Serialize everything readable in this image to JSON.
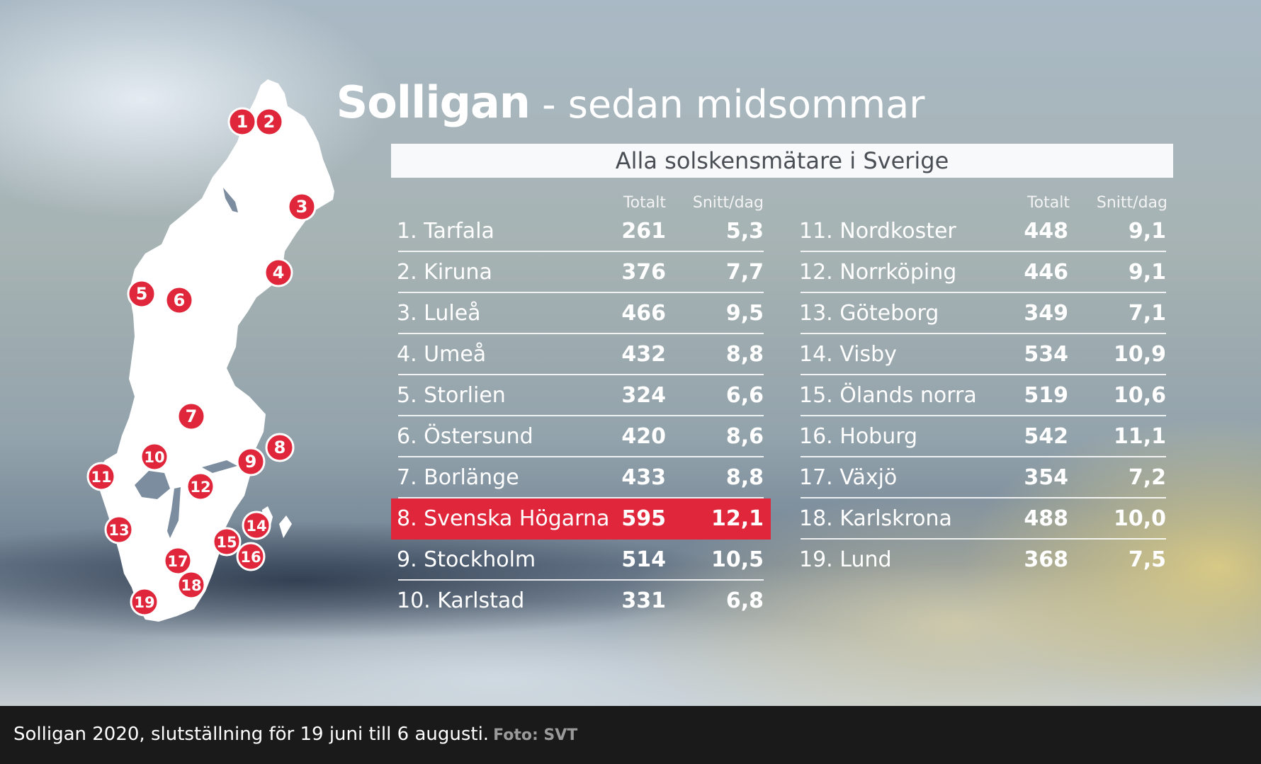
{
  "title": {
    "bold": "Solligan",
    "rest": " - sedan midsommar"
  },
  "subtitle": "Alla solskensmätare i Sverige",
  "columns": {
    "total": "Totalt",
    "avg": "Snitt/dag"
  },
  "stations": [
    {
      "rank": "1.",
      "name": "Tarfala",
      "total": "261",
      "avg": "5,3"
    },
    {
      "rank": "2.",
      "name": "Kiruna",
      "total": "376",
      "avg": "7,7"
    },
    {
      "rank": "3.",
      "name": "Luleå",
      "total": "466",
      "avg": "9,5"
    },
    {
      "rank": "4.",
      "name": "Umeå",
      "total": "432",
      "avg": "8,8"
    },
    {
      "rank": "5.",
      "name": "Storlien",
      "total": "324",
      "avg": "6,6"
    },
    {
      "rank": "6.",
      "name": "Östersund",
      "total": "420",
      "avg": "8,6"
    },
    {
      "rank": "7.",
      "name": "Borlänge",
      "total": "433",
      "avg": "8,8"
    },
    {
      "rank": "8.",
      "name": "Svenska Högarna",
      "total": "595",
      "avg": "12,1",
      "highlight": true
    },
    {
      "rank": "9.",
      "name": "Stockholm",
      "total": "514",
      "avg": "10,5"
    },
    {
      "rank": "10.",
      "name": "Karlstad",
      "total": "331",
      "avg": "6,8"
    },
    {
      "rank": "11.",
      "name": "Nordkoster",
      "total": "448",
      "avg": "9,1"
    },
    {
      "rank": "12.",
      "name": "Norrköping",
      "total": "446",
      "avg": "9,1"
    },
    {
      "rank": "13.",
      "name": "Göteborg",
      "total": "349",
      "avg": "7,1"
    },
    {
      "rank": "14.",
      "name": "Visby",
      "total": "534",
      "avg": "10,9"
    },
    {
      "rank": "15.",
      "name": "Ölands norra",
      "total": "519",
      "avg": "10,6"
    },
    {
      "rank": "16.",
      "name": "Hoburg",
      "total": "542",
      "avg": "11,1"
    },
    {
      "rank": "17.",
      "name": "Växjö",
      "total": "354",
      "avg": "7,2"
    },
    {
      "rank": "18.",
      "name": "Karlskrona",
      "total": "488",
      "avg": "10,0"
    },
    {
      "rank": "19.",
      "name": "Lund",
      "total": "368",
      "avg": "7,5"
    }
  ],
  "map_markers": [
    "1",
    "2",
    "3",
    "4",
    "5",
    "6",
    "7",
    "8",
    "9",
    "10",
    "11",
    "12",
    "13",
    "14",
    "15",
    "16",
    "17",
    "18",
    "19"
  ],
  "caption": {
    "text": "Solligan 2020, slutställning för 19 juni till 6 augusti.",
    "credit": "Foto: SVT"
  },
  "colors": {
    "accent": "#e0263a",
    "text": "#ffffff"
  }
}
